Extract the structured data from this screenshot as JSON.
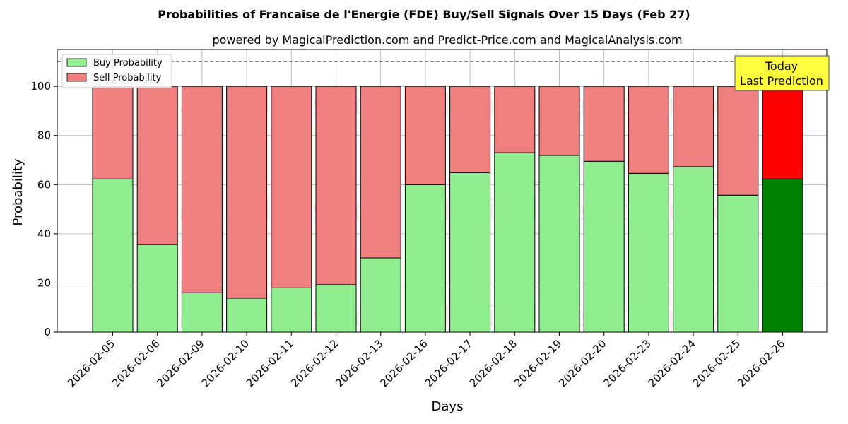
{
  "chart_data": {
    "type": "bar",
    "stacked": true,
    "title": "Probabilities of Francaise de l'Energie (FDE) Buy/Sell Signals Over 15 Days (Feb 27)",
    "subtitle": "powered by MagicalPrediction.com and Predict-Price.com and MagicalAnalysis.com",
    "xlabel": "Days",
    "ylabel": "Probability",
    "ylim": [
      0,
      115
    ],
    "yticks": [
      0,
      20,
      40,
      60,
      80,
      100
    ],
    "grid": true,
    "legend_position": "top-left",
    "reference_line": 110,
    "categories": [
      "2026-02-05",
      "2026-02-06",
      "2026-02-09",
      "2026-02-10",
      "2026-02-11",
      "2026-02-12",
      "2026-02-13",
      "2026-02-16",
      "2026-02-17",
      "2026-02-18",
      "2026-02-19",
      "2026-02-20",
      "2026-02-23",
      "2026-02-24",
      "2026-02-25",
      "2026-02-26"
    ],
    "series": [
      {
        "name": "Buy Probability",
        "color": "#90ee90",
        "highlight_color": "#008000",
        "values": [
          62.3,
          35.7,
          16.0,
          13.8,
          18.0,
          19.3,
          30.2,
          60.0,
          64.9,
          73.0,
          71.9,
          69.5,
          64.6,
          67.3,
          55.7,
          62.3
        ]
      },
      {
        "name": "Sell Probability",
        "color": "#f08080",
        "highlight_color": "#ff0000",
        "values": [
          37.7,
          64.3,
          84.0,
          86.2,
          82.0,
          80.7,
          69.8,
          40.0,
          35.1,
          27.0,
          28.1,
          30.5,
          35.4,
          32.7,
          44.3,
          37.7
        ]
      }
    ],
    "annotation": {
      "line1": "Today",
      "line2": "Last Prediction",
      "background": "#ffff40"
    },
    "watermarks": [
      "MagicalAnalysis.com",
      "MagicalPrediction.com"
    ]
  }
}
